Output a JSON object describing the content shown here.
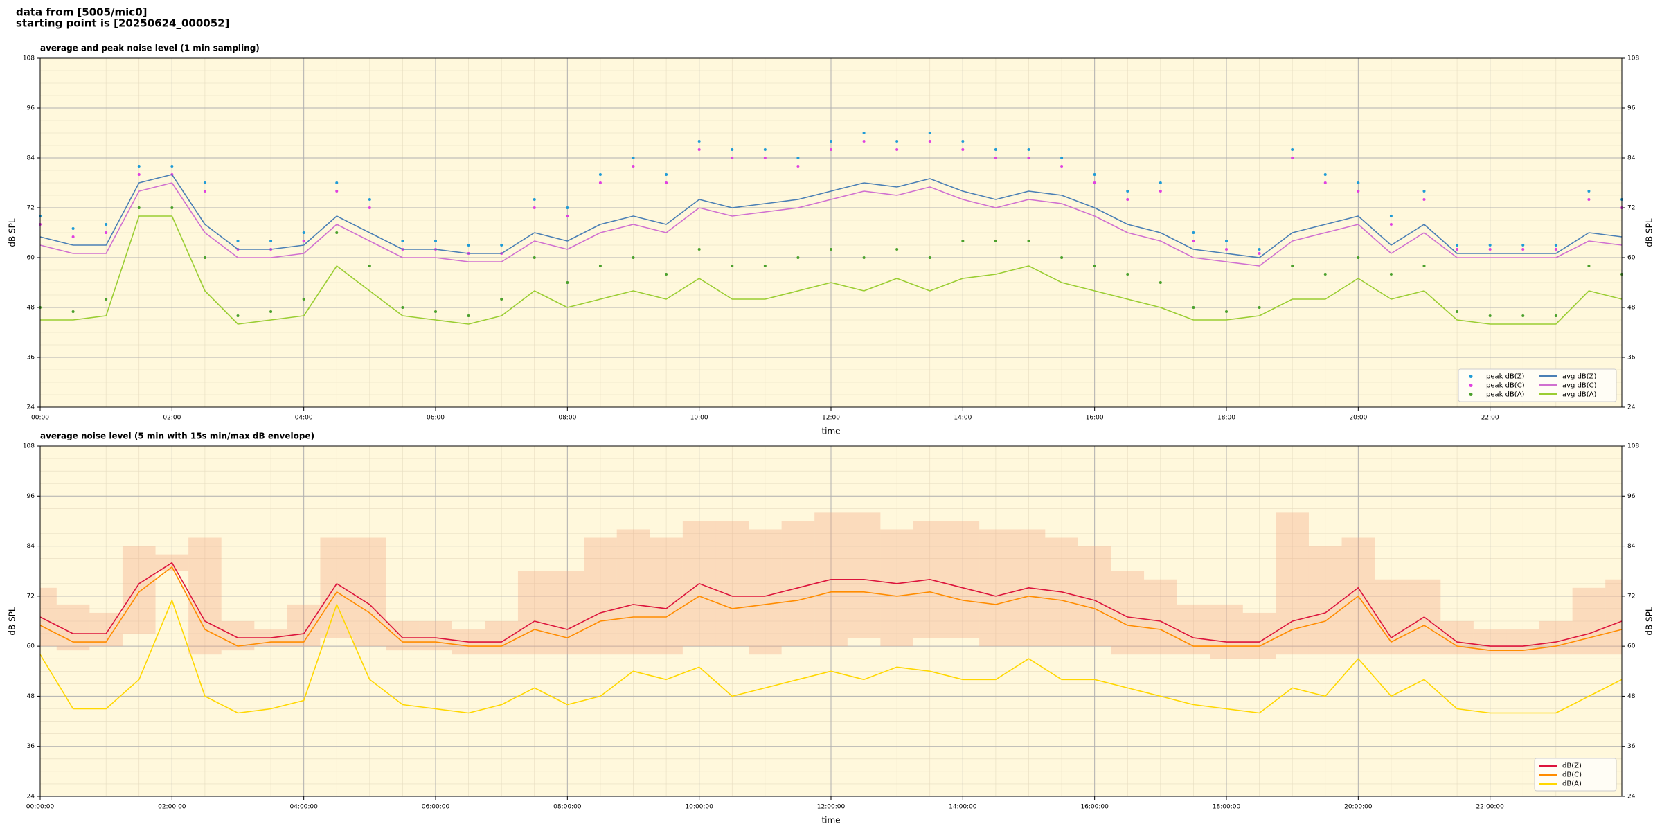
{
  "header": {
    "line1": "data from [5005/mic0]",
    "line2": "starting point is [20250624_000052]"
  },
  "chart_data": [
    {
      "type": "line",
      "title": "average and peak noise level (1 min sampling)",
      "xlabel": "time",
      "ylabel": "dB SPL",
      "x": [
        0,
        0.5,
        1,
        1.5,
        2,
        2.5,
        3,
        3.5,
        4,
        4.5,
        5,
        5.5,
        6,
        6.5,
        7,
        7.5,
        8,
        8.5,
        9,
        9.5,
        10,
        10.5,
        11,
        11.5,
        12,
        12.5,
        13,
        13.5,
        14,
        14.5,
        15,
        15.5,
        16,
        16.5,
        17,
        17.5,
        18,
        18.5,
        19,
        19.5,
        20,
        20.5,
        21,
        21.5,
        22,
        22.5,
        23,
        23.5,
        24
      ],
      "xlim": [
        0,
        24
      ],
      "ylim": [
        24,
        108
      ],
      "xticks": [
        {
          "value": 0,
          "label": "00:00"
        },
        {
          "value": 2,
          "label": "02:00"
        },
        {
          "value": 4,
          "label": "04:00"
        },
        {
          "value": 6,
          "label": "06:00"
        },
        {
          "value": 8,
          "label": "08:00"
        },
        {
          "value": 10,
          "label": "10:00"
        },
        {
          "value": 12,
          "label": "12:00"
        },
        {
          "value": 14,
          "label": "14:00"
        },
        {
          "value": 16,
          "label": "16:00"
        },
        {
          "value": 18,
          "label": "18:00"
        },
        {
          "value": 20,
          "label": "20:00"
        },
        {
          "value": 22,
          "label": "22:00"
        }
      ],
      "yticks": [
        24,
        36,
        48,
        60,
        72,
        84,
        96,
        108
      ],
      "grid": true,
      "legend": "lower right",
      "series": [
        {
          "name": "peak dB(Z)",
          "color": "#1f9bd6",
          "kind": "scatter",
          "values": [
            70,
            67,
            68,
            82,
            82,
            78,
            64,
            64,
            66,
            78,
            74,
            64,
            64,
            63,
            63,
            74,
            72,
            80,
            84,
            80,
            88,
            86,
            86,
            84,
            88,
            90,
            88,
            90,
            88,
            86,
            86,
            84,
            80,
            76,
            78,
            66,
            64,
            62,
            86,
            80,
            78,
            70,
            76,
            63,
            63,
            63,
            63,
            76,
            74
          ]
        },
        {
          "name": "peak dB(C)",
          "color": "#e040e0",
          "kind": "scatter",
          "values": [
            68,
            65,
            66,
            80,
            80,
            76,
            62,
            62,
            64,
            76,
            72,
            62,
            62,
            61,
            61,
            72,
            70,
            78,
            82,
            78,
            86,
            84,
            84,
            82,
            86,
            88,
            86,
            88,
            86,
            84,
            84,
            82,
            78,
            74,
            76,
            64,
            62,
            61,
            84,
            78,
            76,
            68,
            74,
            62,
            62,
            62,
            62,
            74,
            72
          ]
        },
        {
          "name": "peak dB(A)",
          "color": "#4aa02c",
          "kind": "scatter",
          "values": [
            48,
            47,
            50,
            72,
            72,
            60,
            46,
            47,
            50,
            66,
            58,
            48,
            47,
            46,
            50,
            60,
            54,
            58,
            60,
            56,
            62,
            58,
            58,
            60,
            62,
            60,
            62,
            60,
            64,
            64,
            64,
            60,
            58,
            56,
            54,
            48,
            47,
            48,
            58,
            56,
            60,
            56,
            58,
            47,
            46,
            46,
            46,
            58,
            56
          ]
        },
        {
          "name": "avg dB(Z)",
          "color": "#4a7fb5",
          "kind": "line",
          "values": [
            65,
            63,
            63,
            78,
            80,
            68,
            62,
            62,
            63,
            70,
            66,
            62,
            62,
            61,
            61,
            66,
            64,
            68,
            70,
            68,
            74,
            72,
            73,
            74,
            76,
            78,
            77,
            79,
            76,
            74,
            76,
            75,
            72,
            68,
            66,
            62,
            61,
            60,
            66,
            68,
            70,
            63,
            68,
            61,
            61,
            61,
            61,
            66,
            65
          ]
        },
        {
          "name": "avg dB(C)",
          "color": "#d070d0",
          "kind": "line",
          "values": [
            63,
            61,
            61,
            76,
            78,
            66,
            60,
            60,
            61,
            68,
            64,
            60,
            60,
            59,
            59,
            64,
            62,
            66,
            68,
            66,
            72,
            70,
            71,
            72,
            74,
            76,
            75,
            77,
            74,
            72,
            74,
            73,
            70,
            66,
            64,
            60,
            59,
            58,
            64,
            66,
            68,
            61,
            66,
            60,
            60,
            60,
            60,
            64,
            63
          ]
        },
        {
          "name": "avg dB(A)",
          "color": "#9acd32",
          "kind": "line",
          "values": [
            45,
            45,
            46,
            70,
            70,
            52,
            44,
            45,
            46,
            58,
            52,
            46,
            45,
            44,
            46,
            52,
            48,
            50,
            52,
            50,
            55,
            50,
            50,
            52,
            54,
            52,
            55,
            52,
            55,
            56,
            58,
            54,
            52,
            50,
            48,
            45,
            45,
            46,
            50,
            50,
            55,
            50,
            52,
            45,
            44,
            44,
            44,
            52,
            50
          ]
        }
      ]
    },
    {
      "type": "line",
      "title": "average noise level (5 min with 15s min/max dB envelope)",
      "xlabel": "time",
      "ylabel": "dB SPL",
      "x": [
        0,
        0.5,
        1,
        1.5,
        2,
        2.5,
        3,
        3.5,
        4,
        4.5,
        5,
        5.5,
        6,
        6.5,
        7,
        7.5,
        8,
        8.5,
        9,
        9.5,
        10,
        10.5,
        11,
        11.5,
        12,
        12.5,
        13,
        13.5,
        14,
        14.5,
        15,
        15.5,
        16,
        16.5,
        17,
        17.5,
        18,
        18.5,
        19,
        19.5,
        20,
        20.5,
        21,
        21.5,
        22,
        22.5,
        23,
        23.5,
        24
      ],
      "xlim": [
        0,
        24
      ],
      "ylim": [
        24,
        108
      ],
      "xticks": [
        {
          "value": 0,
          "label": "00:00:00"
        },
        {
          "value": 2,
          "label": "02:00:00"
        },
        {
          "value": 4,
          "label": "04:00:00"
        },
        {
          "value": 6,
          "label": "06:00:00"
        },
        {
          "value": 8,
          "label": "08:00:00"
        },
        {
          "value": 10,
          "label": "10:00:00"
        },
        {
          "value": 12,
          "label": "12:00:00"
        },
        {
          "value": 14,
          "label": "14:00:00"
        },
        {
          "value": 16,
          "label": "16:00:00"
        },
        {
          "value": 18,
          "label": "18:00:00"
        },
        {
          "value": 20,
          "label": "20:00:00"
        },
        {
          "value": 22,
          "label": "22:00:00"
        }
      ],
      "yticks": [
        24,
        36,
        48,
        60,
        72,
        84,
        96,
        108
      ],
      "grid": true,
      "legend": "lower right",
      "envelope": {
        "color": "#f4a582",
        "min": [
          60,
          59,
          60,
          63,
          78,
          58,
          59,
          60,
          60,
          62,
          60,
          59,
          59,
          58,
          58,
          58,
          58,
          58,
          58,
          58,
          60,
          60,
          58,
          60,
          60,
          62,
          60,
          62,
          62,
          60,
          60,
          60,
          60,
          58,
          58,
          58,
          57,
          57,
          58,
          58,
          58,
          58,
          58,
          58,
          58,
          58,
          58,
          58,
          58
        ],
        "max": [
          74,
          70,
          68,
          84,
          82,
          86,
          66,
          64,
          70,
          86,
          86,
          66,
          66,
          64,
          66,
          78,
          78,
          86,
          88,
          86,
          90,
          90,
          88,
          90,
          92,
          92,
          88,
          90,
          90,
          88,
          88,
          86,
          84,
          78,
          76,
          70,
          70,
          68,
          92,
          84,
          86,
          76,
          76,
          66,
          64,
          64,
          66,
          74,
          76
        ]
      },
      "series": [
        {
          "name": "dB(Z)",
          "color": "#dc143c",
          "kind": "line",
          "values": [
            67,
            63,
            63,
            75,
            80,
            66,
            62,
            62,
            63,
            75,
            70,
            62,
            62,
            61,
            61,
            66,
            64,
            68,
            70,
            69,
            75,
            72,
            72,
            74,
            76,
            76,
            75,
            76,
            74,
            72,
            74,
            73,
            71,
            67,
            66,
            62,
            61,
            61,
            66,
            68,
            74,
            62,
            67,
            61,
            60,
            60,
            61,
            63,
            66
          ]
        },
        {
          "name": "dB(C)",
          "color": "#ff8c00",
          "kind": "line",
          "values": [
            65,
            61,
            61,
            73,
            79,
            64,
            60,
            61,
            61,
            73,
            68,
            61,
            61,
            60,
            60,
            64,
            62,
            66,
            67,
            67,
            72,
            69,
            70,
            71,
            73,
            73,
            72,
            73,
            71,
            70,
            72,
            71,
            69,
            65,
            64,
            60,
            60,
            60,
            64,
            66,
            72,
            61,
            65,
            60,
            59,
            59,
            60,
            62,
            64
          ]
        },
        {
          "name": "dB(A)",
          "color": "#ffd700",
          "kind": "line",
          "values": [
            58,
            45,
            45,
            52,
            71,
            48,
            44,
            45,
            47,
            70,
            52,
            46,
            45,
            44,
            46,
            50,
            46,
            48,
            54,
            52,
            55,
            48,
            50,
            52,
            54,
            52,
            55,
            54,
            52,
            52,
            57,
            52,
            52,
            50,
            48,
            46,
            45,
            44,
            50,
            48,
            57,
            48,
            52,
            45,
            44,
            44,
            44,
            48,
            52
          ]
        }
      ]
    }
  ]
}
